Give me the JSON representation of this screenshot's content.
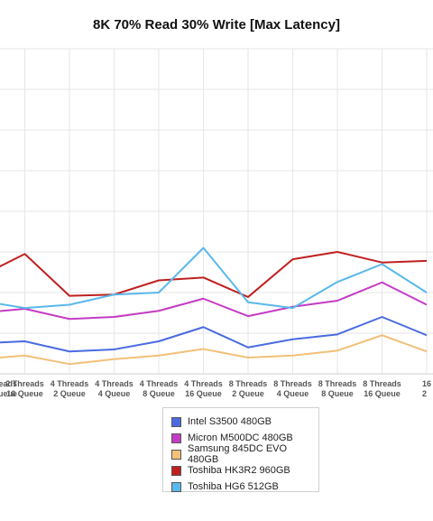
{
  "chart_data": {
    "type": "line",
    "title": "8K 70% Read 30% Write [Max Latency]",
    "xlabel": "",
    "ylabel": "",
    "grid": true,
    "legend_position": "bottom-center",
    "x_labels": [
      [
        "Threads",
        "Queue"
      ],
      [
        "2 Threads",
        "16 Queue"
      ],
      [
        "4 Threads",
        "2 Queue"
      ],
      [
        "4 Threads",
        "4 Queue"
      ],
      [
        "4 Threads",
        "8 Queue"
      ],
      [
        "4 Threads",
        "16 Queue"
      ],
      [
        "8 Threads",
        "2 Queue"
      ],
      [
        "8 Threads",
        "4 Queue"
      ],
      [
        "8 Threads",
        "8 Queue"
      ],
      [
        "8 Threads",
        "16 Queue"
      ],
      [
        "16",
        "2"
      ]
    ],
    "ylim": [
      0,
      8
    ],
    "series": [
      {
        "name": "Intel S3500 480GB",
        "color": "#4a6be0",
        "values": [
          0.75,
          0.8,
          0.55,
          0.6,
          0.8,
          1.15,
          0.65,
          0.85,
          0.97,
          1.4,
          0.95
        ]
      },
      {
        "name": "Micron M500DC 480GB",
        "color": "#c43cc4",
        "values": [
          1.5,
          1.6,
          1.35,
          1.4,
          1.55,
          1.85,
          1.42,
          1.65,
          1.8,
          2.25,
          1.7
        ]
      },
      {
        "name": "Samsung 845DC EVO 480GB",
        "color": "#f2c07a",
        "values": [
          0.36,
          0.45,
          0.24,
          0.36,
          0.45,
          0.61,
          0.4,
          0.45,
          0.57,
          0.95,
          0.55
        ]
      },
      {
        "name": "Toshiba HK3R2 960GB",
        "color": "#c02020",
        "values": [
          2.4,
          2.95,
          1.92,
          1.95,
          2.3,
          2.37,
          1.89,
          2.82,
          3.0,
          2.74,
          2.78
        ]
      },
      {
        "name": "Toshiba HG6 512GB",
        "color": "#5ab8ea",
        "values": [
          1.8,
          1.62,
          1.7,
          1.95,
          2.0,
          3.1,
          1.76,
          1.62,
          2.26,
          2.7,
          2.0
        ]
      }
    ]
  }
}
